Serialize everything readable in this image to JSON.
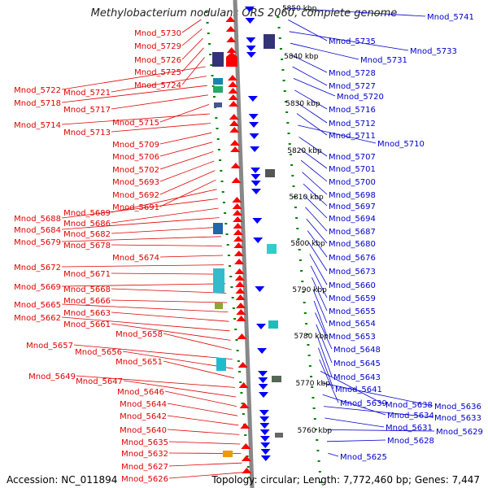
{
  "title": "Methylobacterium nodulans ORS 2060, complete genome",
  "accession": "Accession: NC_011894",
  "topology": "Topology: circular; Length: 7,772,460 bp; Genes: 7,447",
  "colors": {
    "label_left": "#e00000",
    "label_right": "#0000cc",
    "forward_gene": "#ff0000",
    "reverse_gene": "#0000ff",
    "tick": "#008000",
    "backbone": "#888888"
  },
  "scale_labels": [
    "5850 kbp",
    "5840 kbp",
    "5830 kbp",
    "5820 kbp",
    "5810 kbp",
    "5800 kbp",
    "5790 kbp",
    "5780 kbp",
    "5770 kbp",
    "5760 kbp"
  ],
  "left_labels": [
    "Mnod_5730",
    "Mnod_5729",
    "Mnod_5726",
    "Mnod_5725",
    "Mnod_5724",
    "Mnod_5722",
    "Mnod_5721",
    "Mnod_5718",
    "Mnod_5717",
    "Mnod_5715",
    "Mnod_5714",
    "Mnod_5713",
    "Mnod_5709",
    "Mnod_5706",
    "Mnod_5702",
    "Mnod_5693",
    "Mnod_5692",
    "Mnod_5691",
    "Mnod_5689",
    "Mnod_5688",
    "Mnod_5686",
    "Mnod_5684",
    "Mnod_5682",
    "Mnod_5679",
    "Mnod_5678",
    "Mnod_5674",
    "Mnod_5672",
    "Mnod_5671",
    "Mnod_5669",
    "Mnod_5668",
    "Mnod_5666",
    "Mnod_5665",
    "Mnod_5663",
    "Mnod_5662",
    "Mnod_5661",
    "Mnod_5658",
    "Mnod_5657",
    "Mnod_5656",
    "Mnod_5651",
    "Mnod_5649",
    "Mnod_5647",
    "Mnod_5646",
    "Mnod_5644",
    "Mnod_5642",
    "Mnod_5640",
    "Mnod_5635",
    "Mnod_5632",
    "Mnod_5627",
    "Mnod_5626"
  ],
  "right_labels": [
    "Mnod_5741",
    "Mnod_5735",
    "Mnod_5733",
    "Mnod_5731",
    "Mnod_5728",
    "Mnod_5727",
    "Mnod_5720",
    "Mnod_5716",
    "Mnod_5712",
    "Mnod_5711",
    "Mnod_5710",
    "Mnod_5707",
    "Mnod_5701",
    "Mnod_5700",
    "Mnod_5698",
    "Mnod_5697",
    "Mnod_5694",
    "Mnod_5687",
    "Mnod_5680",
    "Mnod_5676",
    "Mnod_5673",
    "Mnod_5660",
    "Mnod_5659",
    "Mnod_5655",
    "Mnod_5654",
    "Mnod_5653",
    "Mnod_5648",
    "Mnod_5645",
    "Mnod_5643",
    "Mnod_5641",
    "Mnod_5639",
    "Mnod_5638",
    "Mnod_5636",
    "Mnod_5634",
    "Mnod_5633",
    "Mnod_5631",
    "Mnod_5629",
    "Mnod_5628",
    "Mnod_5625"
  ]
}
